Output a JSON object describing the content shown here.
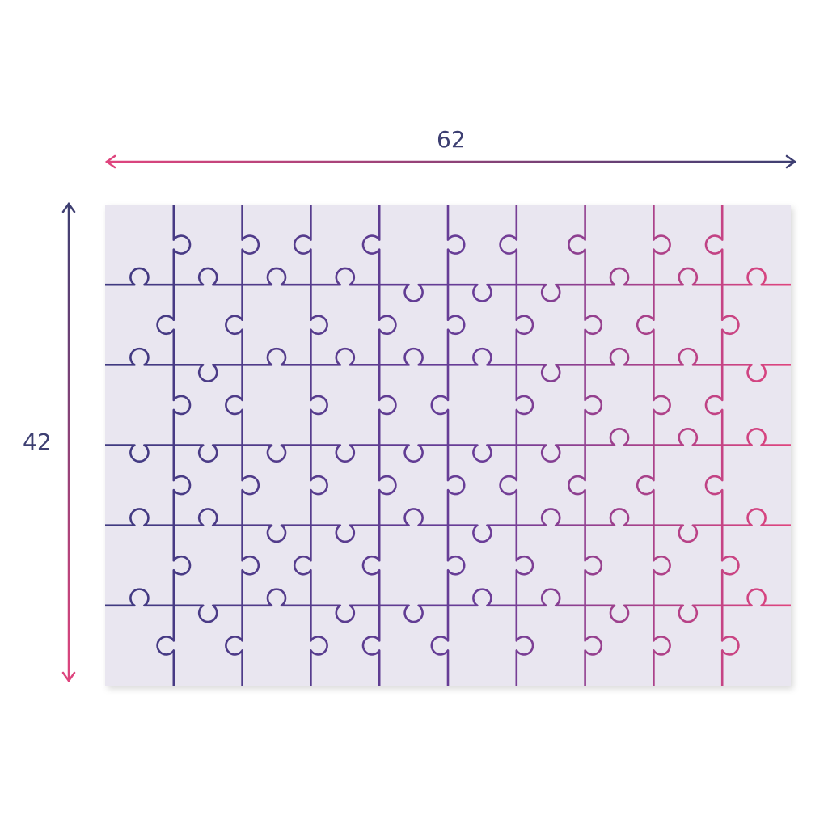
{
  "dimensions": {
    "width_label": "62",
    "height_label": "42"
  },
  "puzzle": {
    "columns": 10,
    "rows": 6,
    "background_color": "#e9e6f0"
  },
  "colors": {
    "dark": "#3f3a80",
    "pink": "#e0457e",
    "label": "#3d3f72"
  }
}
